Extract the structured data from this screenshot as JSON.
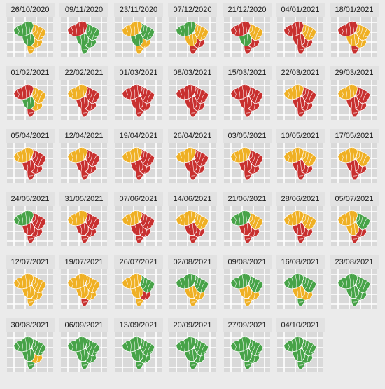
{
  "colors": {
    "background": "#ebebeb",
    "panel": "#d9d9d9",
    "strip": "#e2e2e2",
    "grid": "#ffffff",
    "border": "#ffffff"
  },
  "chart_data": {
    "type": "choropleth-facets",
    "region": "Brazil",
    "grid": true,
    "legend": "none",
    "category_colors": {
      "green": "#47a348",
      "yellow": "#efb024",
      "red": "#c8302f"
    },
    "facets": [
      {
        "date": "26/10/2020",
        "north": "green",
        "northeast": "yellow",
        "centerwest": "green",
        "southeast": "yellow",
        "south": "yellow"
      },
      {
        "date": "09/11/2020",
        "north": "red",
        "northeast": "green",
        "centerwest": "green",
        "southeast": "green",
        "south": "green"
      },
      {
        "date": "23/11/2020",
        "north": "yellow",
        "northeast": "green",
        "centerwest": "green",
        "southeast": "yellow",
        "south": "yellow"
      },
      {
        "date": "07/12/2020",
        "north": "green",
        "northeast": "yellow",
        "centerwest": "yellow",
        "southeast": "red",
        "south": "red"
      },
      {
        "date": "21/12/2020",
        "north": "red",
        "northeast": "yellow",
        "centerwest": "green",
        "southeast": "red",
        "south": "red"
      },
      {
        "date": "04/01/2021",
        "north": "red",
        "northeast": "yellow",
        "centerwest": "red",
        "southeast": "red",
        "south": "red"
      },
      {
        "date": "18/01/2021",
        "north": "red",
        "northeast": "yellow",
        "centerwest": "yellow",
        "southeast": "yellow",
        "south": "red"
      },
      {
        "date": "01/02/2021",
        "north": "red",
        "northeast": "yellow",
        "centerwest": "green",
        "southeast": "yellow",
        "south": "red"
      },
      {
        "date": "22/02/2021",
        "north": "yellow",
        "northeast": "red",
        "centerwest": "red",
        "southeast": "red",
        "south": "red"
      },
      {
        "date": "01/03/2021",
        "north": "red",
        "northeast": "red",
        "centerwest": "red",
        "southeast": "red",
        "south": "red"
      },
      {
        "date": "08/03/2021",
        "north": "red",
        "northeast": "red",
        "centerwest": "red",
        "southeast": "red",
        "south": "red"
      },
      {
        "date": "15/03/2021",
        "north": "red",
        "northeast": "red",
        "centerwest": "red",
        "southeast": "red",
        "south": "red"
      },
      {
        "date": "22/03/2021",
        "north": "yellow",
        "northeast": "red",
        "centerwest": "red",
        "southeast": "red",
        "south": "red"
      },
      {
        "date": "29/03/2021",
        "north": "yellow",
        "northeast": "red",
        "centerwest": "red",
        "southeast": "red",
        "south": "red"
      },
      {
        "date": "05/04/2021",
        "north": "yellow",
        "northeast": "red",
        "centerwest": "red",
        "southeast": "red",
        "south": "red"
      },
      {
        "date": "12/04/2021",
        "north": "yellow",
        "northeast": "red",
        "centerwest": "red",
        "southeast": "red",
        "south": "red"
      },
      {
        "date": "19/04/2021",
        "north": "yellow",
        "northeast": "red",
        "centerwest": "red",
        "southeast": "red",
        "south": "red"
      },
      {
        "date": "26/04/2021",
        "north": "yellow",
        "northeast": "red",
        "centerwest": "red",
        "southeast": "red",
        "south": "red"
      },
      {
        "date": "03/05/2021",
        "north": "yellow",
        "northeast": "red",
        "centerwest": "red",
        "southeast": "red",
        "south": "red"
      },
      {
        "date": "10/05/2021",
        "north": "yellow",
        "northeast": "yellow",
        "centerwest": "red",
        "southeast": "red",
        "south": "red"
      },
      {
        "date": "17/05/2021",
        "north": "yellow",
        "northeast": "yellow",
        "centerwest": "red",
        "southeast": "red",
        "south": "red"
      },
      {
        "date": "24/05/2021",
        "north": "green",
        "northeast": "red",
        "centerwest": "red",
        "southeast": "red",
        "south": "red"
      },
      {
        "date": "31/05/2021",
        "north": "yellow",
        "northeast": "red",
        "centerwest": "red",
        "southeast": "red",
        "south": "red"
      },
      {
        "date": "07/06/2021",
        "north": "yellow",
        "northeast": "red",
        "centerwest": "red",
        "southeast": "red",
        "south": "red"
      },
      {
        "date": "14/06/2021",
        "north": "yellow",
        "northeast": "yellow",
        "centerwest": "red",
        "southeast": "red",
        "south": "red"
      },
      {
        "date": "21/06/2021",
        "north": "green",
        "northeast": "yellow",
        "centerwest": "red",
        "southeast": "red",
        "south": "red"
      },
      {
        "date": "28/06/2021",
        "north": "yellow",
        "northeast": "yellow",
        "centerwest": "red",
        "southeast": "red",
        "south": "red"
      },
      {
        "date": "05/07/2021",
        "north": "yellow",
        "northeast": "green",
        "centerwest": "yellow",
        "southeast": "red",
        "south": "red"
      },
      {
        "date": "12/07/2021",
        "north": "yellow",
        "northeast": "yellow",
        "centerwest": "yellow",
        "southeast": "yellow",
        "south": "yellow"
      },
      {
        "date": "19/07/2021",
        "north": "yellow",
        "northeast": "yellow",
        "centerwest": "yellow",
        "southeast": "yellow",
        "south": "red"
      },
      {
        "date": "26/07/2021",
        "north": "yellow",
        "northeast": "green",
        "centerwest": "yellow",
        "southeast": "red",
        "south": "yellow"
      },
      {
        "date": "02/08/2021",
        "north": "green",
        "northeast": "green",
        "centerwest": "yellow",
        "southeast": "yellow",
        "south": "yellow"
      },
      {
        "date": "09/08/2021",
        "north": "green",
        "northeast": "green",
        "centerwest": "yellow",
        "southeast": "yellow",
        "south": "yellow"
      },
      {
        "date": "16/08/2021",
        "north": "green",
        "northeast": "green",
        "centerwest": "yellow",
        "southeast": "yellow",
        "south": "green"
      },
      {
        "date": "23/08/2021",
        "north": "green",
        "northeast": "green",
        "centerwest": "green",
        "southeast": "green",
        "south": "green"
      },
      {
        "date": "30/08/2021",
        "north": "green",
        "northeast": "green",
        "centerwest": "green",
        "southeast": "yellow",
        "south": "green"
      },
      {
        "date": "06/09/2021",
        "north": "green",
        "northeast": "green",
        "centerwest": "green",
        "southeast": "green",
        "south": "green"
      },
      {
        "date": "13/09/2021",
        "north": "green",
        "northeast": "green",
        "centerwest": "green",
        "southeast": "green",
        "south": "green"
      },
      {
        "date": "20/09/2021",
        "north": "green",
        "northeast": "green",
        "centerwest": "green",
        "southeast": "green",
        "south": "green"
      },
      {
        "date": "27/09/2021",
        "north": "green",
        "northeast": "green",
        "centerwest": "green",
        "southeast": "green",
        "south": "green"
      },
      {
        "date": "04/10/2021",
        "north": "green",
        "northeast": "green",
        "centerwest": "green",
        "southeast": "green",
        "south": "green"
      }
    ]
  }
}
